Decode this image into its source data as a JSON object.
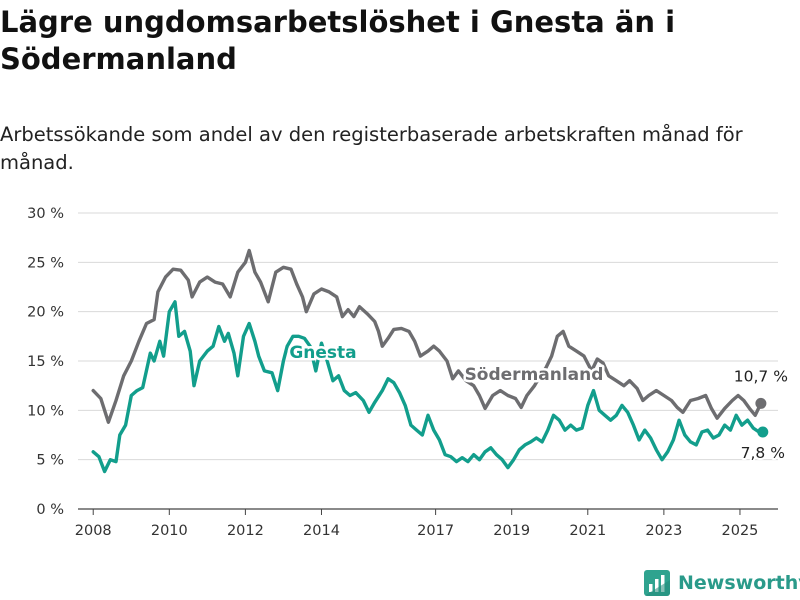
{
  "title": "Lägre ungdomsarbetslöshet i Gnesta än i Södermanland",
  "subtitle": "Arbetssökande som andel av den registerbaserade arbetskraften månad för månad.",
  "brand": {
    "name": "Newsworthy",
    "icon": "bar-chart-logo-icon"
  },
  "chart_data": {
    "type": "line",
    "title": "Lägre ungdomsarbetslöshet i Gnesta än i Södermanland",
    "subtitle": "Arbetssökande som andel av den registerbaserade arbetskraften månad för månad.",
    "xlabel": "",
    "ylabel": "",
    "ylim": [
      0,
      30
    ],
    "xlim": [
      2007.6,
      2026.0
    ],
    "grid": true,
    "legend": "inline",
    "y_ticks": [
      0,
      5,
      10,
      15,
      20,
      25,
      30
    ],
    "y_tick_labels": [
      "0 %",
      "5 %",
      "10 %",
      "15 %",
      "20 %",
      "25 %",
      "30 %"
    ],
    "x_ticks": [
      2008,
      2010,
      2012,
      2014,
      2017,
      2019,
      2021,
      2023,
      2025
    ],
    "x_tick_labels": [
      "2008",
      "2010",
      "2012",
      "2014",
      "2017",
      "2019",
      "2021",
      "2023",
      "2025"
    ],
    "series": [
      {
        "name": "Södermanland",
        "color": "#6d6d70",
        "end_label": "10,7 %",
        "points": [
          [
            2008.0,
            12.0
          ],
          [
            2008.2,
            11.2
          ],
          [
            2008.4,
            8.8
          ],
          [
            2008.6,
            11.0
          ],
          [
            2008.8,
            13.5
          ],
          [
            2009.0,
            15.0
          ],
          [
            2009.2,
            17.0
          ],
          [
            2009.4,
            18.8
          ],
          [
            2009.6,
            19.2
          ],
          [
            2009.7,
            22.0
          ],
          [
            2009.9,
            23.5
          ],
          [
            2010.1,
            24.3
          ],
          [
            2010.3,
            24.2
          ],
          [
            2010.5,
            23.2
          ],
          [
            2010.6,
            21.5
          ],
          [
            2010.8,
            23.0
          ],
          [
            2011.0,
            23.5
          ],
          [
            2011.2,
            23.0
          ],
          [
            2011.4,
            22.8
          ],
          [
            2011.6,
            21.5
          ],
          [
            2011.8,
            24.0
          ],
          [
            2012.0,
            25.0
          ],
          [
            2012.1,
            26.2
          ],
          [
            2012.25,
            24.0
          ],
          [
            2012.4,
            23.0
          ],
          [
            2012.6,
            21.0
          ],
          [
            2012.8,
            24.0
          ],
          [
            2013.0,
            24.5
          ],
          [
            2013.2,
            24.3
          ],
          [
            2013.35,
            22.8
          ],
          [
            2013.5,
            21.5
          ],
          [
            2013.6,
            20.0
          ],
          [
            2013.8,
            21.8
          ],
          [
            2014.0,
            22.3
          ],
          [
            2014.2,
            22.0
          ],
          [
            2014.4,
            21.5
          ],
          [
            2014.55,
            19.5
          ],
          [
            2014.7,
            20.2
          ],
          [
            2014.85,
            19.5
          ],
          [
            2015.0,
            20.5
          ],
          [
            2015.2,
            19.8
          ],
          [
            2015.4,
            19.0
          ],
          [
            2015.5,
            18.0
          ],
          [
            2015.6,
            16.5
          ],
          [
            2015.75,
            17.3
          ],
          [
            2015.9,
            18.2
          ],
          [
            2016.1,
            18.3
          ],
          [
            2016.3,
            18.0
          ],
          [
            2016.45,
            17.0
          ],
          [
            2016.6,
            15.5
          ],
          [
            2016.8,
            16.0
          ],
          [
            2016.95,
            16.5
          ],
          [
            2017.1,
            16.0
          ],
          [
            2017.3,
            15.0
          ],
          [
            2017.45,
            13.2
          ],
          [
            2017.6,
            14.0
          ],
          [
            2017.8,
            13.0
          ],
          [
            2018.0,
            12.5
          ],
          [
            2018.15,
            11.5
          ],
          [
            2018.3,
            10.2
          ],
          [
            2018.5,
            11.5
          ],
          [
            2018.7,
            12.0
          ],
          [
            2018.9,
            11.5
          ],
          [
            2019.1,
            11.2
          ],
          [
            2019.25,
            10.3
          ],
          [
            2019.4,
            11.5
          ],
          [
            2019.6,
            12.5
          ],
          [
            2019.75,
            13.5
          ],
          [
            2019.9,
            14.3
          ],
          [
            2020.05,
            15.5
          ],
          [
            2020.2,
            17.5
          ],
          [
            2020.35,
            18.0
          ],
          [
            2020.5,
            16.5
          ],
          [
            2020.7,
            16.0
          ],
          [
            2020.9,
            15.5
          ],
          [
            2021.1,
            14.0
          ],
          [
            2021.25,
            15.2
          ],
          [
            2021.4,
            14.8
          ],
          [
            2021.55,
            13.5
          ],
          [
            2021.75,
            13.0
          ],
          [
            2021.95,
            12.5
          ],
          [
            2022.1,
            13.0
          ],
          [
            2022.3,
            12.2
          ],
          [
            2022.45,
            11.0
          ],
          [
            2022.6,
            11.5
          ],
          [
            2022.8,
            12.0
          ],
          [
            2023.0,
            11.5
          ],
          [
            2023.2,
            11.0
          ],
          [
            2023.35,
            10.3
          ],
          [
            2023.5,
            9.8
          ],
          [
            2023.7,
            11.0
          ],
          [
            2023.9,
            11.2
          ],
          [
            2024.1,
            11.5
          ],
          [
            2024.25,
            10.2
          ],
          [
            2024.4,
            9.2
          ],
          [
            2024.6,
            10.2
          ],
          [
            2024.8,
            11.0
          ],
          [
            2024.95,
            11.5
          ],
          [
            2025.1,
            11.0
          ],
          [
            2025.25,
            10.2
          ],
          [
            2025.4,
            9.5
          ],
          [
            2025.55,
            10.7
          ]
        ]
      },
      {
        "name": "Gnesta",
        "color": "#129e8c",
        "end_label": "7,8 %",
        "points": [
          [
            2008.0,
            5.8
          ],
          [
            2008.15,
            5.3
          ],
          [
            2008.3,
            3.8
          ],
          [
            2008.45,
            5.0
          ],
          [
            2008.6,
            4.8
          ],
          [
            2008.7,
            7.5
          ],
          [
            2008.85,
            8.5
          ],
          [
            2009.0,
            11.5
          ],
          [
            2009.15,
            12.0
          ],
          [
            2009.3,
            12.3
          ],
          [
            2009.5,
            15.8
          ],
          [
            2009.6,
            15.0
          ],
          [
            2009.75,
            17.0
          ],
          [
            2009.85,
            15.5
          ],
          [
            2010.0,
            20.0
          ],
          [
            2010.15,
            21.0
          ],
          [
            2010.25,
            17.5
          ],
          [
            2010.4,
            18.0
          ],
          [
            2010.55,
            16.0
          ],
          [
            2010.65,
            12.5
          ],
          [
            2010.8,
            15.0
          ],
          [
            2011.0,
            16.0
          ],
          [
            2011.15,
            16.5
          ],
          [
            2011.3,
            18.5
          ],
          [
            2011.45,
            17.0
          ],
          [
            2011.55,
            17.8
          ],
          [
            2011.7,
            15.8
          ],
          [
            2011.8,
            13.5
          ],
          [
            2011.95,
            17.5
          ],
          [
            2012.1,
            18.8
          ],
          [
            2012.25,
            17.0
          ],
          [
            2012.35,
            15.5
          ],
          [
            2012.5,
            14.0
          ],
          [
            2012.7,
            13.8
          ],
          [
            2012.85,
            12.0
          ],
          [
            2013.0,
            15.0
          ],
          [
            2013.1,
            16.5
          ],
          [
            2013.25,
            17.5
          ],
          [
            2013.4,
            17.5
          ],
          [
            2013.55,
            17.3
          ],
          [
            2013.7,
            16.5
          ],
          [
            2013.85,
            14.0
          ],
          [
            2014.0,
            16.8
          ],
          [
            2014.15,
            15.0
          ],
          [
            2014.3,
            13.0
          ],
          [
            2014.45,
            13.5
          ],
          [
            2014.6,
            12.0
          ],
          [
            2014.75,
            11.5
          ],
          [
            2014.9,
            11.8
          ],
          [
            2015.1,
            11.0
          ],
          [
            2015.25,
            9.8
          ],
          [
            2015.4,
            10.8
          ],
          [
            2015.6,
            12.0
          ],
          [
            2015.75,
            13.2
          ],
          [
            2015.9,
            12.8
          ],
          [
            2016.05,
            11.8
          ],
          [
            2016.2,
            10.5
          ],
          [
            2016.35,
            8.5
          ],
          [
            2016.5,
            8.0
          ],
          [
            2016.65,
            7.5
          ],
          [
            2016.8,
            9.5
          ],
          [
            2016.95,
            8.0
          ],
          [
            2017.1,
            7.0
          ],
          [
            2017.25,
            5.5
          ],
          [
            2017.4,
            5.3
          ],
          [
            2017.55,
            4.8
          ],
          [
            2017.7,
            5.2
          ],
          [
            2017.85,
            4.8
          ],
          [
            2018.0,
            5.5
          ],
          [
            2018.15,
            5.0
          ],
          [
            2018.3,
            5.8
          ],
          [
            2018.45,
            6.2
          ],
          [
            2018.6,
            5.5
          ],
          [
            2018.75,
            5.0
          ],
          [
            2018.9,
            4.2
          ],
          [
            2019.05,
            5.0
          ],
          [
            2019.2,
            6.0
          ],
          [
            2019.35,
            6.5
          ],
          [
            2019.5,
            6.8
          ],
          [
            2019.65,
            7.2
          ],
          [
            2019.8,
            6.8
          ],
          [
            2019.95,
            8.0
          ],
          [
            2020.1,
            9.5
          ],
          [
            2020.25,
            9.0
          ],
          [
            2020.4,
            8.0
          ],
          [
            2020.55,
            8.5
          ],
          [
            2020.7,
            8.0
          ],
          [
            2020.85,
            8.2
          ],
          [
            2021.0,
            10.5
          ],
          [
            2021.15,
            12.0
          ],
          [
            2021.3,
            10.0
          ],
          [
            2021.45,
            9.5
          ],
          [
            2021.6,
            9.0
          ],
          [
            2021.75,
            9.5
          ],
          [
            2021.9,
            10.5
          ],
          [
            2022.05,
            9.8
          ],
          [
            2022.2,
            8.5
          ],
          [
            2022.35,
            7.0
          ],
          [
            2022.5,
            8.0
          ],
          [
            2022.65,
            7.2
          ],
          [
            2022.8,
            6.0
          ],
          [
            2022.95,
            5.0
          ],
          [
            2023.1,
            5.8
          ],
          [
            2023.25,
            7.0
          ],
          [
            2023.4,
            9.0
          ],
          [
            2023.55,
            7.5
          ],
          [
            2023.7,
            6.8
          ],
          [
            2023.85,
            6.5
          ],
          [
            2024.0,
            7.8
          ],
          [
            2024.15,
            8.0
          ],
          [
            2024.3,
            7.2
          ],
          [
            2024.45,
            7.5
          ],
          [
            2024.6,
            8.5
          ],
          [
            2024.75,
            8.0
          ],
          [
            2024.9,
            9.5
          ],
          [
            2025.05,
            8.5
          ],
          [
            2025.2,
            9.0
          ],
          [
            2025.35,
            8.2
          ],
          [
            2025.5,
            7.8
          ],
          [
            2025.6,
            7.8
          ]
        ]
      }
    ]
  }
}
